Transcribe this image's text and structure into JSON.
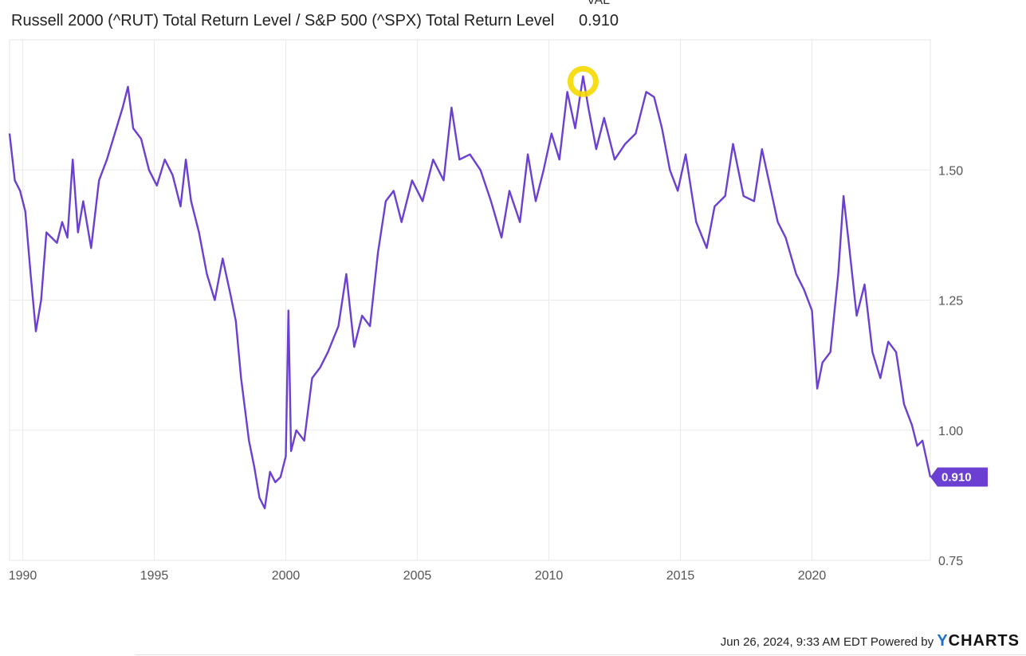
{
  "legend": {
    "val_header": "VAL",
    "series_name": "Russell 2000 (^RUT) Total Return Level / S&P 500 (^SPX) Total Return Level",
    "series_value": "0.910"
  },
  "footer": {
    "timestamp": "Jun 26, 2024, 9:33 AM EDT",
    "powered_by": "Powered by",
    "brand": "CHARTS",
    "brand_prefix": "Y"
  },
  "colors": {
    "series": "#6a3fd1",
    "highlight": "#f5d800",
    "grid": "#eaeaea",
    "background": "#ffffff"
  },
  "chart_data": {
    "type": "line",
    "title": "",
    "xlabel": "",
    "ylabel": "",
    "xlim": [
      1989.5,
      2024.5
    ],
    "ylim": [
      0.75,
      1.75
    ],
    "x_ticks": [
      1990,
      1995,
      2000,
      2005,
      2010,
      2015,
      2020
    ],
    "x_tick_labels": [
      "1990",
      "1995",
      "2000",
      "2005",
      "2010",
      "2015",
      "2020"
    ],
    "y_ticks": [
      0.75,
      1.0,
      1.25,
      1.5
    ],
    "y_tick_labels": [
      "0.75",
      "1.00",
      "1.25",
      "1.50"
    ],
    "y_axis_side": "right",
    "grid": true,
    "end_label": "0.910",
    "annotation": {
      "type": "highlight-circle",
      "x": 2011.3,
      "y": 1.67,
      "color": "#f5d800"
    },
    "series": [
      {
        "x": [
          1989.5,
          1989.7,
          1989.9,
          1990.1,
          1990.3,
          1990.5,
          1990.7,
          1990.9,
          1991.1,
          1991.3,
          1991.5,
          1991.7,
          1991.9,
          1992.1,
          1992.3,
          1992.6,
          1992.9,
          1993.2,
          1993.5,
          1993.8,
          1994.0,
          1994.2,
          1994.5,
          1994.8,
          1995.1,
          1995.4,
          1995.7,
          1996.0,
          1996.2,
          1996.4,
          1996.7,
          1997.0,
          1997.3,
          1997.6,
          1997.9,
          1998.1,
          1998.3,
          1998.6,
          1998.8,
          1999.0,
          1999.2,
          1999.4,
          1999.6,
          1999.8,
          2000.0,
          2000.1,
          2000.2,
          2000.4,
          2000.7,
          2001.0,
          2001.3,
          2001.6,
          2002.0,
          2002.3,
          2002.6,
          2002.9,
          2003.2,
          2003.5,
          2003.8,
          2004.1,
          2004.4,
          2004.8,
          2005.2,
          2005.6,
          2006.0,
          2006.3,
          2006.6,
          2007.0,
          2007.4,
          2007.8,
          2008.2,
          2008.5,
          2008.9,
          2009.2,
          2009.5,
          2009.8,
          2010.1,
          2010.4,
          2010.7,
          2011.0,
          2011.3,
          2011.5,
          2011.8,
          2012.1,
          2012.5,
          2012.9,
          2013.3,
          2013.7,
          2014.0,
          2014.3,
          2014.6,
          2014.9,
          2015.2,
          2015.6,
          2016.0,
          2016.3,
          2016.7,
          2017.0,
          2017.4,
          2017.8,
          2018.1,
          2018.4,
          2018.7,
          2019.0,
          2019.4,
          2019.7,
          2020.0,
          2020.2,
          2020.4,
          2020.7,
          2021.0,
          2021.2,
          2021.4,
          2021.7,
          2022.0,
          2022.3,
          2022.6,
          2022.9,
          2023.2,
          2023.5,
          2023.8,
          2024.0,
          2024.2,
          2024.5
        ],
        "values": [
          1.57,
          1.48,
          1.46,
          1.42,
          1.3,
          1.19,
          1.25,
          1.38,
          1.37,
          1.36,
          1.4,
          1.37,
          1.52,
          1.38,
          1.44,
          1.35,
          1.48,
          1.52,
          1.57,
          1.62,
          1.66,
          1.58,
          1.56,
          1.5,
          1.47,
          1.52,
          1.49,
          1.43,
          1.52,
          1.44,
          1.38,
          1.3,
          1.25,
          1.33,
          1.26,
          1.21,
          1.1,
          0.98,
          0.93,
          0.87,
          0.85,
          0.92,
          0.9,
          0.91,
          0.95,
          1.23,
          0.96,
          1.0,
          0.98,
          1.1,
          1.12,
          1.15,
          1.2,
          1.3,
          1.16,
          1.22,
          1.2,
          1.34,
          1.44,
          1.46,
          1.4,
          1.48,
          1.44,
          1.52,
          1.48,
          1.62,
          1.52,
          1.53,
          1.5,
          1.44,
          1.37,
          1.46,
          1.4,
          1.53,
          1.44,
          1.5,
          1.57,
          1.52,
          1.65,
          1.58,
          1.68,
          1.62,
          1.54,
          1.6,
          1.52,
          1.55,
          1.57,
          1.65,
          1.64,
          1.58,
          1.5,
          1.46,
          1.53,
          1.4,
          1.35,
          1.43,
          1.45,
          1.55,
          1.45,
          1.44,
          1.54,
          1.47,
          1.4,
          1.37,
          1.3,
          1.27,
          1.23,
          1.08,
          1.13,
          1.15,
          1.3,
          1.45,
          1.36,
          1.22,
          1.28,
          1.15,
          1.1,
          1.17,
          1.15,
          1.05,
          1.01,
          0.97,
          0.98,
          0.91
        ]
      }
    ]
  }
}
